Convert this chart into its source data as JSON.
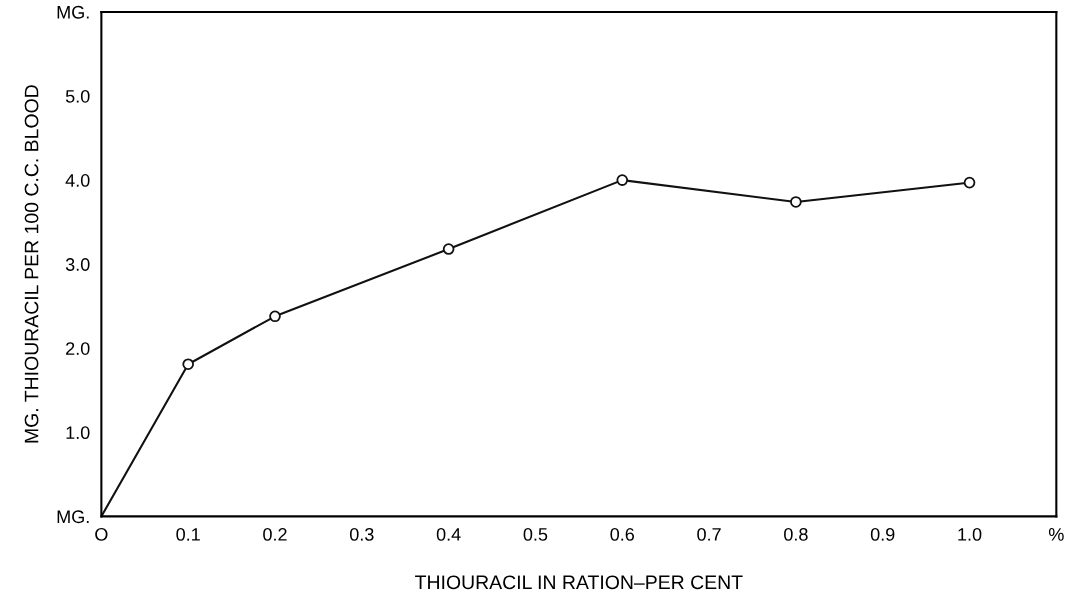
{
  "chart_data": {
    "type": "line",
    "xlabel": "THIOURACIL IN RATION–PER CENT",
    "ylabel": "MG. THIOURACIL PER 100 C.C. BLOOD",
    "x": [
      0,
      0.1,
      0.2,
      0.4,
      0.6,
      0.8,
      1.0
    ],
    "series": [
      {
        "type": "line",
        "color": "#111111",
        "marker": "none",
        "values": [
          0,
          1.81,
          2.38,
          3.18,
          4.0,
          3.74,
          3.97
        ]
      },
      {
        "type": "scatter",
        "color": "#111111",
        "marker": "circle",
        "x": [
          0.1,
          0.2,
          0.4,
          0.6,
          0.8,
          1.0
        ],
        "values": [
          1.81,
          2.38,
          3.18,
          4.0,
          3.74,
          3.97
        ]
      }
    ],
    "xlim": [
      0,
      1.1
    ],
    "ylim": [
      0,
      6.0
    ],
    "xticks": [
      {
        "value": 0,
        "label": "O"
      },
      0.1,
      0.2,
      0.3,
      0.4,
      0.5,
      0.6,
      0.7,
      0.8,
      0.9,
      {
        "value": 1,
        "label": "1.0"
      },
      {
        "value": 1.1,
        "label": "%"
      }
    ],
    "yticks": [
      {
        "value": 0,
        "label": "MG."
      },
      {
        "value": 1,
        "label": "1.0"
      },
      {
        "value": 2,
        "label": "2.0"
      },
      {
        "value": 3,
        "label": "3.0"
      },
      {
        "value": 4,
        "label": "4.0"
      },
      {
        "value": 5,
        "label": "5.0"
      },
      {
        "value": 6.0,
        "label": "MG."
      }
    ],
    "grid": false,
    "legend": false
  }
}
